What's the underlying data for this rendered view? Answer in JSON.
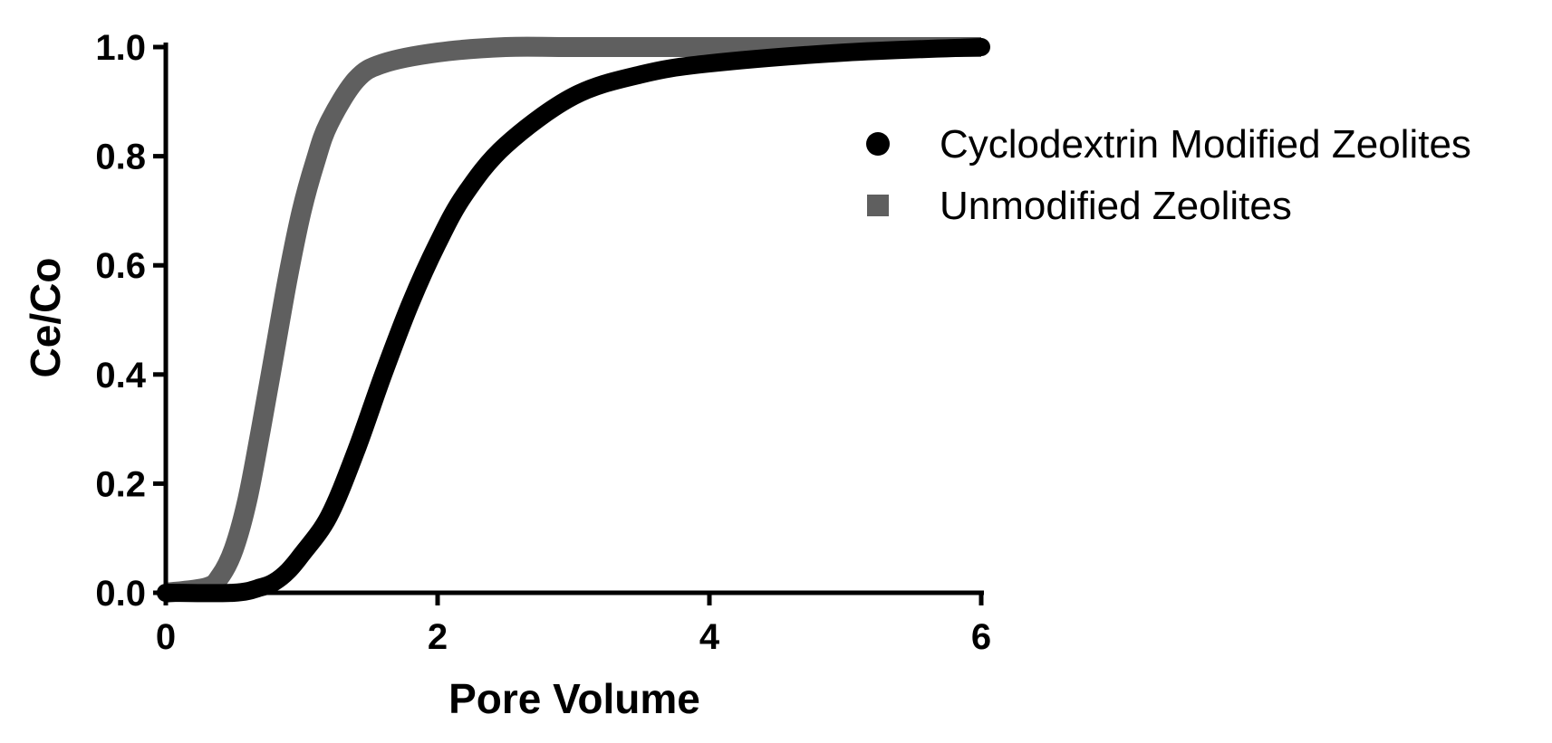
{
  "chart_data": {
    "type": "line",
    "title": "",
    "xlabel": "Pore Volume",
    "ylabel": "Ce/Co",
    "xlim": [
      0,
      6
    ],
    "ylim": [
      0,
      1.0
    ],
    "xticks": [
      "0",
      "2",
      "4",
      "6"
    ],
    "yticks": [
      "0.0",
      "0.2",
      "0.4",
      "0.6",
      "0.8",
      "1.0"
    ],
    "grid": false,
    "legend_position": "right",
    "series": [
      {
        "name": "Cyclodextrin Modified Zeolites",
        "marker": "circle",
        "color": "#000000",
        "x": [
          0,
          0.5,
          0.7,
          0.8,
          0.9,
          1.0,
          1.2,
          1.4,
          1.6,
          1.8,
          2.0,
          2.2,
          2.5,
          3.0,
          3.5,
          4.0,
          5.0,
          6.0
        ],
        "y": [
          0,
          0.0,
          0.01,
          0.02,
          0.04,
          0.07,
          0.14,
          0.26,
          0.4,
          0.53,
          0.64,
          0.73,
          0.82,
          0.91,
          0.95,
          0.97,
          0.99,
          1.0
        ]
      },
      {
        "name": "Unmodified Zeolites",
        "marker": "square",
        "color": "#5f5f5f",
        "x": [
          0,
          0.3,
          0.4,
          0.5,
          0.6,
          0.7,
          0.8,
          0.9,
          1.0,
          1.1,
          1.2,
          1.4,
          1.6,
          2.0,
          2.5,
          3.0,
          4.0,
          6.0
        ],
        "y": [
          0,
          0.01,
          0.03,
          0.08,
          0.17,
          0.3,
          0.44,
          0.58,
          0.7,
          0.79,
          0.86,
          0.94,
          0.97,
          0.99,
          1.0,
          1.0,
          1.0,
          1.0
        ]
      }
    ]
  }
}
